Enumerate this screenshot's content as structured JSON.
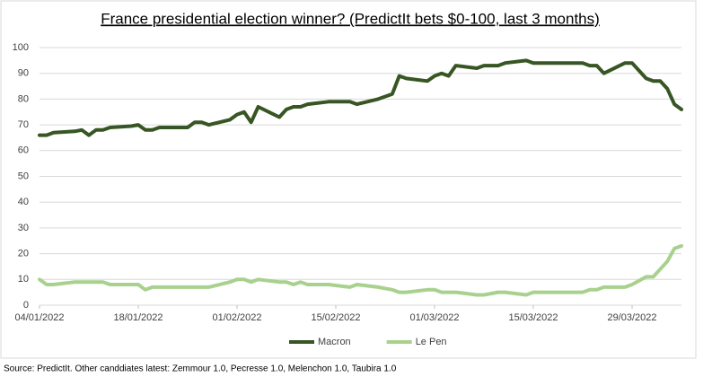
{
  "chart_data": {
    "type": "line",
    "title": "France presidential election winner? (PredictIt bets $0-100, last 3 months)",
    "source": "Source: PredictIt. Other canddiates latest: Zemmour 1.0, Pecresse 1.0, Melenchon 1.0, Taubira 1.0",
    "x": [
      "04/01/2022",
      "05/01/2022",
      "06/01/2022",
      "09/01/2022",
      "10/01/2022",
      "11/01/2022",
      "12/01/2022",
      "13/01/2022",
      "14/01/2022",
      "17/01/2022",
      "18/01/2022",
      "19/01/2022",
      "20/01/2022",
      "21/01/2022",
      "25/01/2022",
      "26/01/2022",
      "27/01/2022",
      "28/01/2022",
      "31/01/2022",
      "01/02/2022",
      "02/02/2022",
      "03/02/2022",
      "04/02/2022",
      "07/02/2022",
      "08/02/2022",
      "09/02/2022",
      "10/02/2022",
      "11/02/2022",
      "14/02/2022",
      "17/02/2022",
      "18/02/2022",
      "21/02/2022",
      "23/02/2022",
      "24/02/2022",
      "25/02/2022",
      "28/02/2022",
      "01/03/2022",
      "02/03/2022",
      "03/03/2022",
      "04/03/2022",
      "07/03/2022",
      "08/03/2022",
      "10/03/2022",
      "11/03/2022",
      "14/03/2022",
      "15/03/2022",
      "22/03/2022",
      "23/03/2022",
      "24/03/2022",
      "25/03/2022",
      "28/03/2022",
      "29/03/2022",
      "31/03/2022",
      "01/04/2022",
      "02/04/2022",
      "03/04/2022",
      "04/04/2022",
      "05/04/2022"
    ],
    "series": [
      {
        "name": "Macron",
        "color": "#375623",
        "values": [
          66,
          66,
          67,
          67.5,
          68,
          66,
          68,
          68,
          69,
          69.5,
          70,
          68,
          68,
          69,
          69,
          71,
          71,
          70,
          72,
          74,
          75,
          71,
          77,
          73,
          76,
          77,
          77,
          78,
          79,
          79,
          78,
          80,
          82,
          89,
          88,
          87,
          89,
          90,
          89,
          93,
          92,
          93,
          93,
          94,
          95,
          94,
          94,
          93,
          93,
          90,
          94,
          94,
          88,
          87,
          87,
          84,
          78,
          76
        ]
      },
      {
        "name": "Le Pen",
        "color": "#a9d18e",
        "values": [
          10,
          8,
          8,
          9,
          9,
          9,
          9,
          9,
          8,
          8,
          8,
          6,
          7,
          7,
          7,
          7,
          7,
          7,
          9,
          10,
          10,
          9,
          10,
          9,
          9,
          8,
          9,
          8,
          8,
          7,
          8,
          7,
          6,
          5,
          5,
          6,
          6,
          5,
          5,
          5,
          4,
          4,
          5,
          5,
          4,
          5,
          5,
          6,
          6,
          7,
          7,
          8,
          11,
          11,
          14,
          17,
          22,
          23
        ]
      }
    ],
    "xlim": [
      "04/01/2022",
      "05/04/2022"
    ],
    "xticks": [
      "04/01/2022",
      "18/01/2022",
      "01/02/2022",
      "15/02/2022",
      "01/03/2022",
      "15/03/2022",
      "29/03/2022"
    ],
    "ylim": [
      0,
      100
    ],
    "yticks": [
      0,
      10,
      20,
      30,
      40,
      50,
      60,
      70,
      80,
      90,
      100
    ],
    "grid": true,
    "legend": "bottom"
  }
}
